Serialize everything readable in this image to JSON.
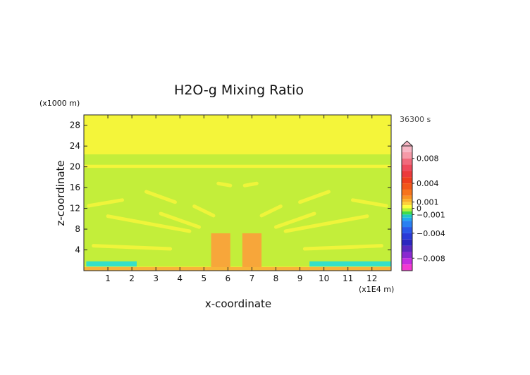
{
  "chart_data": {
    "type": "heatmap",
    "title": "H2O-g Mixing Ratio",
    "time_label": "36300 s",
    "xlabel": "x-coordinate",
    "ylabel": "z-coordinate",
    "x_unit": "(x1E4 m)",
    "y_unit": "(x1000 m)",
    "xlim": [
      0,
      12.8
    ],
    "ylim": [
      0,
      30
    ],
    "x_ticks": [
      {
        "value": 1,
        "label": "1"
      },
      {
        "value": 2,
        "label": "2"
      },
      {
        "value": 3,
        "label": "3"
      },
      {
        "value": 4,
        "label": "4"
      },
      {
        "value": 5,
        "label": "5"
      },
      {
        "value": 6,
        "label": "6"
      },
      {
        "value": 7,
        "label": "7"
      },
      {
        "value": 8,
        "label": "8"
      },
      {
        "value": 9,
        "label": "9"
      },
      {
        "value": 10,
        "label": "10"
      },
      {
        "value": 11,
        "label": "11"
      },
      {
        "value": 12,
        "label": "12"
      }
    ],
    "y_ticks": [
      {
        "value": 4,
        "label": "4"
      },
      {
        "value": 8,
        "label": "8"
      },
      {
        "value": 12,
        "label": "12"
      },
      {
        "value": 16,
        "label": "16"
      },
      {
        "value": 20,
        "label": "20"
      },
      {
        "value": 24,
        "label": "24"
      },
      {
        "value": 28,
        "label": "28"
      }
    ],
    "colorbar": {
      "range": [
        -0.01,
        0.01
      ],
      "tick_labels": [
        {
          "value": 0.008,
          "label": "0.008"
        },
        {
          "value": 0.004,
          "label": "0.004"
        },
        {
          "value": 0.001,
          "label": "0.001"
        },
        {
          "value": 0,
          "label": "0"
        },
        {
          "value": -0.001,
          "label": "−0.001"
        },
        {
          "value": -0.004,
          "label": "−0.004"
        },
        {
          "value": -0.008,
          "label": "−0.008"
        }
      ],
      "bands": [
        {
          "from": 0.009,
          "to": 0.01,
          "color": "#f7b6c4"
        },
        {
          "from": 0.008,
          "to": 0.009,
          "color": "#f59aa8"
        },
        {
          "from": 0.007,
          "to": 0.008,
          "color": "#f06a7c"
        },
        {
          "from": 0.006,
          "to": 0.007,
          "color": "#ee4a5c"
        },
        {
          "from": 0.005,
          "to": 0.006,
          "color": "#ec3a3c"
        },
        {
          "from": 0.004,
          "to": 0.005,
          "color": "#ee3e1e"
        },
        {
          "from": 0.003,
          "to": 0.004,
          "color": "#f2561a"
        },
        {
          "from": 0.002,
          "to": 0.003,
          "color": "#f7741c"
        },
        {
          "from": 0.0015,
          "to": 0.002,
          "color": "#f99322"
        },
        {
          "from": 0.001,
          "to": 0.0015,
          "color": "#fbb02a"
        },
        {
          "from": 0.0005,
          "to": 0.001,
          "color": "#fdd23a"
        },
        {
          "from": 0.0,
          "to": 0.0005,
          "color": "#ffff3c"
        },
        {
          "from": -0.0005,
          "to": 0.0,
          "color": "#b6f23a"
        },
        {
          "from": -0.001,
          "to": -0.0005,
          "color": "#3fdc4a"
        },
        {
          "from": -0.0015,
          "to": -0.001,
          "color": "#1fc8c4"
        },
        {
          "from": -0.002,
          "to": -0.0015,
          "color": "#22a8f0"
        },
        {
          "from": -0.003,
          "to": -0.002,
          "color": "#2a80f2"
        },
        {
          "from": -0.004,
          "to": -0.003,
          "color": "#2a58e8"
        },
        {
          "from": -0.005,
          "to": -0.004,
          "color": "#2a3ad8"
        },
        {
          "from": -0.006,
          "to": -0.005,
          "color": "#2c26c0"
        },
        {
          "from": -0.007,
          "to": -0.006,
          "color": "#5a28c0"
        },
        {
          "from": -0.008,
          "to": -0.007,
          "color": "#8a2ad0"
        },
        {
          "from": -0.009,
          "to": -0.008,
          "color": "#c22ee0"
        },
        {
          "from": -0.01,
          "to": -0.009,
          "color": "#f23ad2"
        }
      ]
    },
    "field_regions": [
      {
        "name": "background",
        "x": [
          0,
          12.8
        ],
        "z": [
          0,
          30
        ],
        "value": 0.0003,
        "color": "#f4f53a"
      },
      {
        "name": "upper-green-layer",
        "x": [
          0,
          12.8
        ],
        "z": [
          20.4,
          22.4
        ],
        "value": -0.0002,
        "color": "#c3ee3a"
      },
      {
        "name": "mid-green-layer",
        "x": [
          0,
          12.8
        ],
        "z": [
          0.8,
          19.8
        ],
        "value": -0.0002,
        "color": "#c3ee3a"
      },
      {
        "name": "warm-core-left",
        "x": [
          5.3,
          6.1
        ],
        "z": [
          0.6,
          7.2
        ],
        "value": 0.0015,
        "color": "#f7a63a"
      },
      {
        "name": "warm-core-right",
        "x": [
          6.6,
          7.4
        ],
        "z": [
          0.6,
          7.2
        ],
        "value": 0.0015,
        "color": "#f7a63a"
      },
      {
        "name": "surface-orange-strip",
        "x": [
          0,
          12.8
        ],
        "z": [
          0,
          0.7
        ],
        "value": 0.001,
        "color": "#f8b43a"
      },
      {
        "name": "cyan-left",
        "x": [
          0.1,
          2.2
        ],
        "z": [
          0.8,
          1.8
        ],
        "value": -0.0013,
        "color": "#35e0c8"
      },
      {
        "name": "cyan-right",
        "x": [
          9.4,
          12.8
        ],
        "z": [
          0.8,
          1.8
        ],
        "value": -0.0013,
        "color": "#35e0c8"
      }
    ]
  }
}
